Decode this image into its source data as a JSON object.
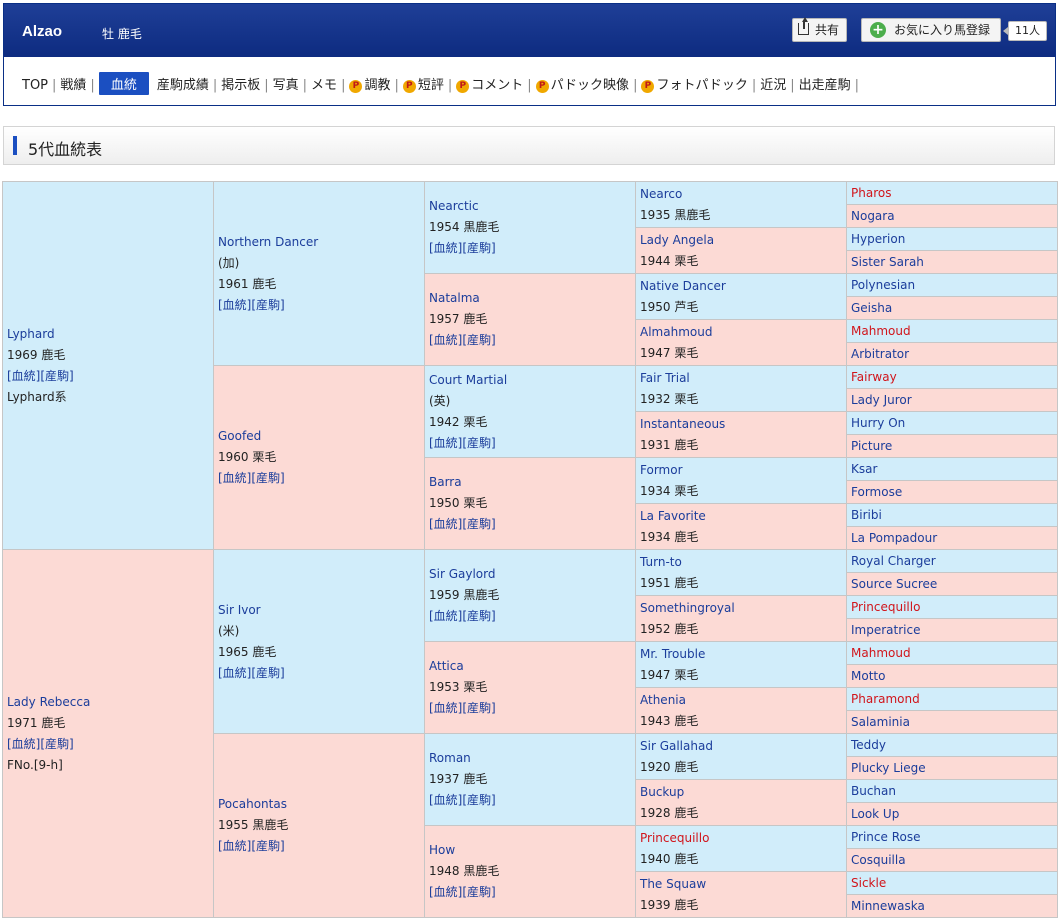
{
  "header": {
    "horse_name": "Alzao",
    "sex_coat": "牡  鹿毛",
    "share_label": "共有",
    "favorite_label": "お気に入り馬登録",
    "favorite_count": "11人"
  },
  "nav": [
    {
      "label": "TOP",
      "active": false,
      "premium": false
    },
    {
      "label": "戦績",
      "active": false,
      "premium": false
    },
    {
      "label": "血統",
      "active": true,
      "premium": false
    },
    {
      "label": "産駒成績",
      "active": false,
      "premium": false
    },
    {
      "label": "掲示板",
      "active": false,
      "premium": false
    },
    {
      "label": "写真",
      "active": false,
      "premium": false
    },
    {
      "label": "メモ",
      "active": false,
      "premium": false
    },
    {
      "label": "調教",
      "active": false,
      "premium": true
    },
    {
      "label": "短評",
      "active": false,
      "premium": true
    },
    {
      "label": "コメント",
      "active": false,
      "premium": true
    },
    {
      "label": "パドック映像",
      "active": false,
      "premium": true
    },
    {
      "label": "フォトパドック",
      "active": false,
      "premium": true
    },
    {
      "label": "近況",
      "active": false,
      "premium": false
    },
    {
      "label": "出走産駒",
      "active": false,
      "premium": false
    }
  ],
  "premium_icon_label": "P",
  "section": {
    "title": "5代血統表"
  },
  "links": {
    "pedigree": "[血統]",
    "offspring": "[産駒]"
  },
  "colors": {
    "male_bg": "#d1edfa",
    "female_bg": "#fcdad5",
    "accent": "#1b4fc1",
    "red_name": "#d1151b"
  },
  "pedigree": {
    "gen1": [
      {
        "name": "Lyphard",
        "year": "1969",
        "coat": "鹿毛",
        "extra": "Lyphard系",
        "links": true,
        "sex": "male",
        "red": false
      },
      {
        "name": "Lady Rebecca",
        "year": "1971",
        "coat": "鹿毛",
        "extra": "FNo.[9-h]",
        "links": true,
        "sex": "female",
        "red": false
      }
    ],
    "gen2": [
      {
        "name": "Northern Dancer",
        "country": "(加)",
        "year": "1961",
        "coat": "鹿毛",
        "links": true,
        "sex": "male",
        "red": false
      },
      {
        "name": "Goofed",
        "year": "1960",
        "coat": "栗毛",
        "links": true,
        "sex": "female",
        "red": false
      },
      {
        "name": "Sir Ivor",
        "country": "(米)",
        "year": "1965",
        "coat": "鹿毛",
        "links": true,
        "sex": "male",
        "red": false
      },
      {
        "name": "Pocahontas",
        "year": "1955",
        "coat": "黒鹿毛",
        "links": true,
        "sex": "female",
        "red": false
      }
    ],
    "gen3": [
      {
        "name": "Nearctic",
        "year": "1954",
        "coat": "黒鹿毛",
        "links": true,
        "sex": "male",
        "red": false
      },
      {
        "name": "Natalma",
        "year": "1957",
        "coat": "鹿毛",
        "links": true,
        "sex": "female",
        "red": false
      },
      {
        "name": "Court Martial",
        "country": "(英)",
        "year": "1942",
        "coat": "栗毛",
        "links": true,
        "sex": "male",
        "red": false
      },
      {
        "name": "Barra",
        "year": "1950",
        "coat": "栗毛",
        "links": true,
        "sex": "female",
        "red": false
      },
      {
        "name": "Sir Gaylord",
        "year": "1959",
        "coat": "黒鹿毛",
        "links": true,
        "sex": "male",
        "red": false
      },
      {
        "name": "Attica",
        "year": "1953",
        "coat": "栗毛",
        "links": true,
        "sex": "female",
        "red": false
      },
      {
        "name": "Roman",
        "year": "1937",
        "coat": "鹿毛",
        "links": true,
        "sex": "male",
        "red": false
      },
      {
        "name": "How",
        "year": "1948",
        "coat": "黒鹿毛",
        "links": true,
        "sex": "female",
        "red": false
      }
    ],
    "gen4": [
      {
        "name": "Nearco",
        "year": "1935",
        "coat": "黒鹿毛",
        "sex": "male",
        "red": false
      },
      {
        "name": "Lady Angela",
        "year": "1944",
        "coat": "栗毛",
        "sex": "female",
        "red": false
      },
      {
        "name": "Native Dancer",
        "year": "1950",
        "coat": "芦毛",
        "sex": "male",
        "red": false
      },
      {
        "name": "Almahmoud",
        "year": "1947",
        "coat": "栗毛",
        "sex": "female",
        "red": false
      },
      {
        "name": "Fair Trial",
        "year": "1932",
        "coat": "栗毛",
        "sex": "male",
        "red": false
      },
      {
        "name": "Instantaneous",
        "year": "1931",
        "coat": "鹿毛",
        "sex": "female",
        "red": false
      },
      {
        "name": "Formor",
        "year": "1934",
        "coat": "栗毛",
        "sex": "male",
        "red": false
      },
      {
        "name": "La Favorite",
        "year": "1934",
        "coat": "鹿毛",
        "sex": "female",
        "red": false
      },
      {
        "name": "Turn-to",
        "year": "1951",
        "coat": "鹿毛",
        "sex": "male",
        "red": false
      },
      {
        "name": "Somethingroyal",
        "year": "1952",
        "coat": "鹿毛",
        "sex": "female",
        "red": false
      },
      {
        "name": "Mr. Trouble",
        "year": "1947",
        "coat": "栗毛",
        "sex": "male",
        "red": false
      },
      {
        "name": "Athenia",
        "year": "1943",
        "coat": "鹿毛",
        "sex": "female",
        "red": false
      },
      {
        "name": "Sir Gallahad",
        "year": "1920",
        "coat": "鹿毛",
        "sex": "male",
        "red": false
      },
      {
        "name": "Buckup",
        "year": "1928",
        "coat": "鹿毛",
        "sex": "female",
        "red": false
      },
      {
        "name": "Princequillo",
        "year": "1940",
        "coat": "鹿毛",
        "sex": "male",
        "red": true
      },
      {
        "name": "The Squaw",
        "year": "1939",
        "coat": "鹿毛",
        "sex": "female",
        "red": false
      }
    ],
    "gen5": [
      {
        "name": "Pharos",
        "sex": "male",
        "red": true
      },
      {
        "name": "Nogara",
        "sex": "female",
        "red": false
      },
      {
        "name": "Hyperion",
        "sex": "male",
        "red": false
      },
      {
        "name": "Sister Sarah",
        "sex": "female",
        "red": false
      },
      {
        "name": "Polynesian",
        "sex": "male",
        "red": false
      },
      {
        "name": "Geisha",
        "sex": "female",
        "red": false
      },
      {
        "name": "Mahmoud",
        "sex": "male",
        "red": true
      },
      {
        "name": "Arbitrator",
        "sex": "female",
        "red": false
      },
      {
        "name": "Fairway",
        "sex": "male",
        "red": true
      },
      {
        "name": "Lady Juror",
        "sex": "female",
        "red": false
      },
      {
        "name": "Hurry On",
        "sex": "male",
        "red": false
      },
      {
        "name": "Picture",
        "sex": "female",
        "red": false
      },
      {
        "name": "Ksar",
        "sex": "male",
        "red": false
      },
      {
        "name": "Formose",
        "sex": "female",
        "red": false
      },
      {
        "name": "Biribi",
        "sex": "male",
        "red": false
      },
      {
        "name": "La Pompadour",
        "sex": "female",
        "red": false
      },
      {
        "name": "Royal Charger",
        "sex": "male",
        "red": false
      },
      {
        "name": "Source Sucree",
        "sex": "female",
        "red": false
      },
      {
        "name": "Princequillo",
        "sex": "male",
        "red": true
      },
      {
        "name": "Imperatrice",
        "sex": "female",
        "red": false
      },
      {
        "name": "Mahmoud",
        "sex": "male",
        "red": true
      },
      {
        "name": "Motto",
        "sex": "female",
        "red": false
      },
      {
        "name": "Pharamond",
        "sex": "male",
        "red": true
      },
      {
        "name": "Salaminia",
        "sex": "female",
        "red": false
      },
      {
        "name": "Teddy",
        "sex": "male",
        "red": false
      },
      {
        "name": "Plucky Liege",
        "sex": "female",
        "red": false
      },
      {
        "name": "Buchan",
        "sex": "male",
        "red": false
      },
      {
        "name": "Look Up",
        "sex": "female",
        "red": false
      },
      {
        "name": "Prince Rose",
        "sex": "male",
        "red": false
      },
      {
        "name": "Cosquilla",
        "sex": "female",
        "red": false
      },
      {
        "name": "Sickle",
        "sex": "male",
        "red": true
      },
      {
        "name": "Minnewaska",
        "sex": "female",
        "red": false
      }
    ]
  }
}
